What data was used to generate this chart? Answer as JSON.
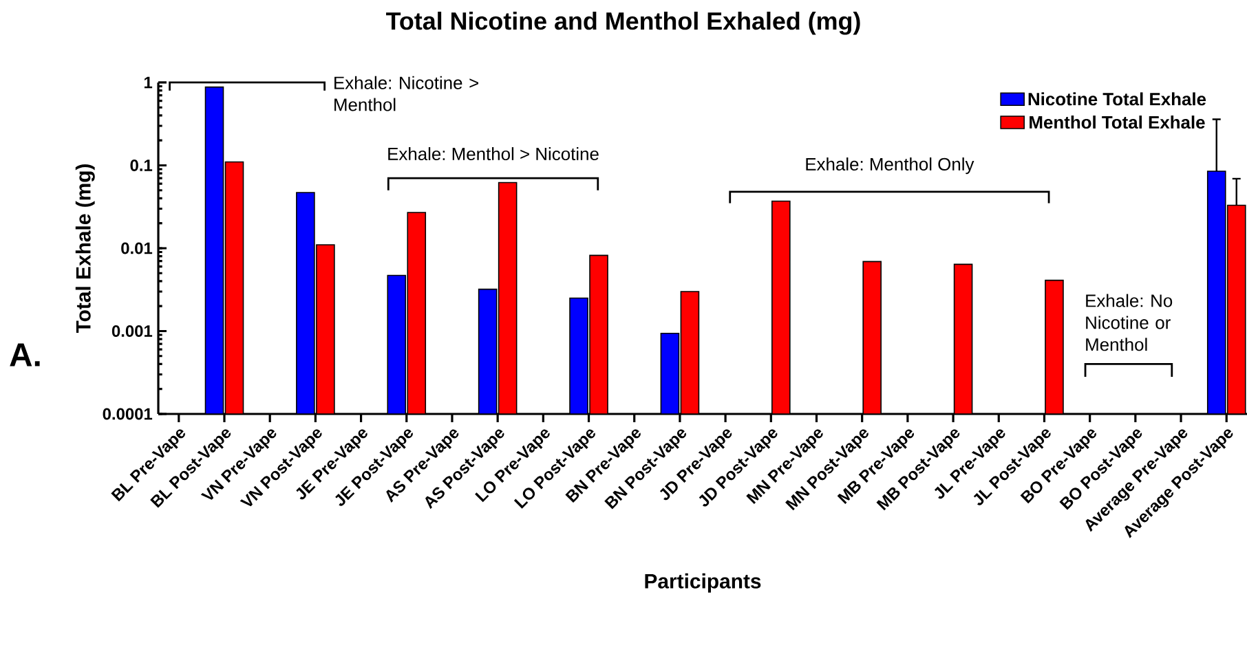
{
  "chart_data": {
    "type": "bar",
    "title": "Total Nicotine and Menthol Exhaled (mg)",
    "xlabel": "Participants",
    "ylabel": "Total Exhale (mg)",
    "categories": [
      "BL Pre-Vape",
      "BL Post-Vape",
      "VN Pre-Vape",
      "VN Post-Vape",
      "JE Pre-Vape",
      "JE Post-Vape",
      "AS Pre-Vape",
      "AS Post-Vape",
      "LO Pre-Vape",
      "LO Post-Vape",
      "BN Pre-Vape",
      "BN Post-Vape",
      "JD Pre-Vape",
      "JD Post-Vape",
      "MN Pre-Vape",
      "MN Post-Vape",
      "MB Pre-Vape",
      "MB Post-Vape",
      "JL Pre-Vape",
      "JL Post-Vape",
      "BO Pre-Vape",
      "BO Post-Vape",
      "Average Pre-Vape",
      "Average Post-Vape"
    ],
    "series": [
      {
        "name": "Nicotine Total Exhale",
        "color": "#0000ff",
        "values": [
          null,
          0.88,
          null,
          0.047,
          null,
          0.0047,
          null,
          0.0032,
          null,
          0.0025,
          null,
          0.00094,
          null,
          null,
          null,
          null,
          null,
          null,
          null,
          null,
          null,
          null,
          null,
          0.085
        ],
        "errors": [
          null,
          null,
          null,
          null,
          null,
          null,
          null,
          null,
          null,
          null,
          null,
          null,
          null,
          null,
          null,
          null,
          null,
          null,
          null,
          null,
          null,
          null,
          null,
          [
            0.085,
            0.36
          ]
        ]
      },
      {
        "name": "Menthol Total Exhale",
        "color": "#ff0000",
        "values": [
          null,
          0.11,
          null,
          0.011,
          null,
          0.027,
          null,
          0.062,
          null,
          0.0082,
          null,
          0.003,
          null,
          0.037,
          null,
          0.0069,
          null,
          0.0064,
          null,
          0.0041,
          null,
          null,
          null,
          0.033
        ],
        "errors": [
          null,
          null,
          null,
          null,
          null,
          null,
          null,
          null,
          null,
          null,
          null,
          null,
          null,
          null,
          null,
          null,
          null,
          null,
          null,
          null,
          null,
          null,
          null,
          [
            0.033,
            0.069
          ]
        ]
      }
    ],
    "log": true,
    "ylim": [
      0.0001,
      1
    ],
    "yticks": [
      0.0001,
      0.001,
      0.01,
      0.1,
      1
    ],
    "legend": "top right",
    "grid": false,
    "annotations": [
      "Exhale: Nicotine > Menthol",
      "Exhale: Menthol > Nicotine",
      "Exhale: Menthol Only",
      "Exhale: No Nicotine or Menthol",
      "A."
    ]
  }
}
